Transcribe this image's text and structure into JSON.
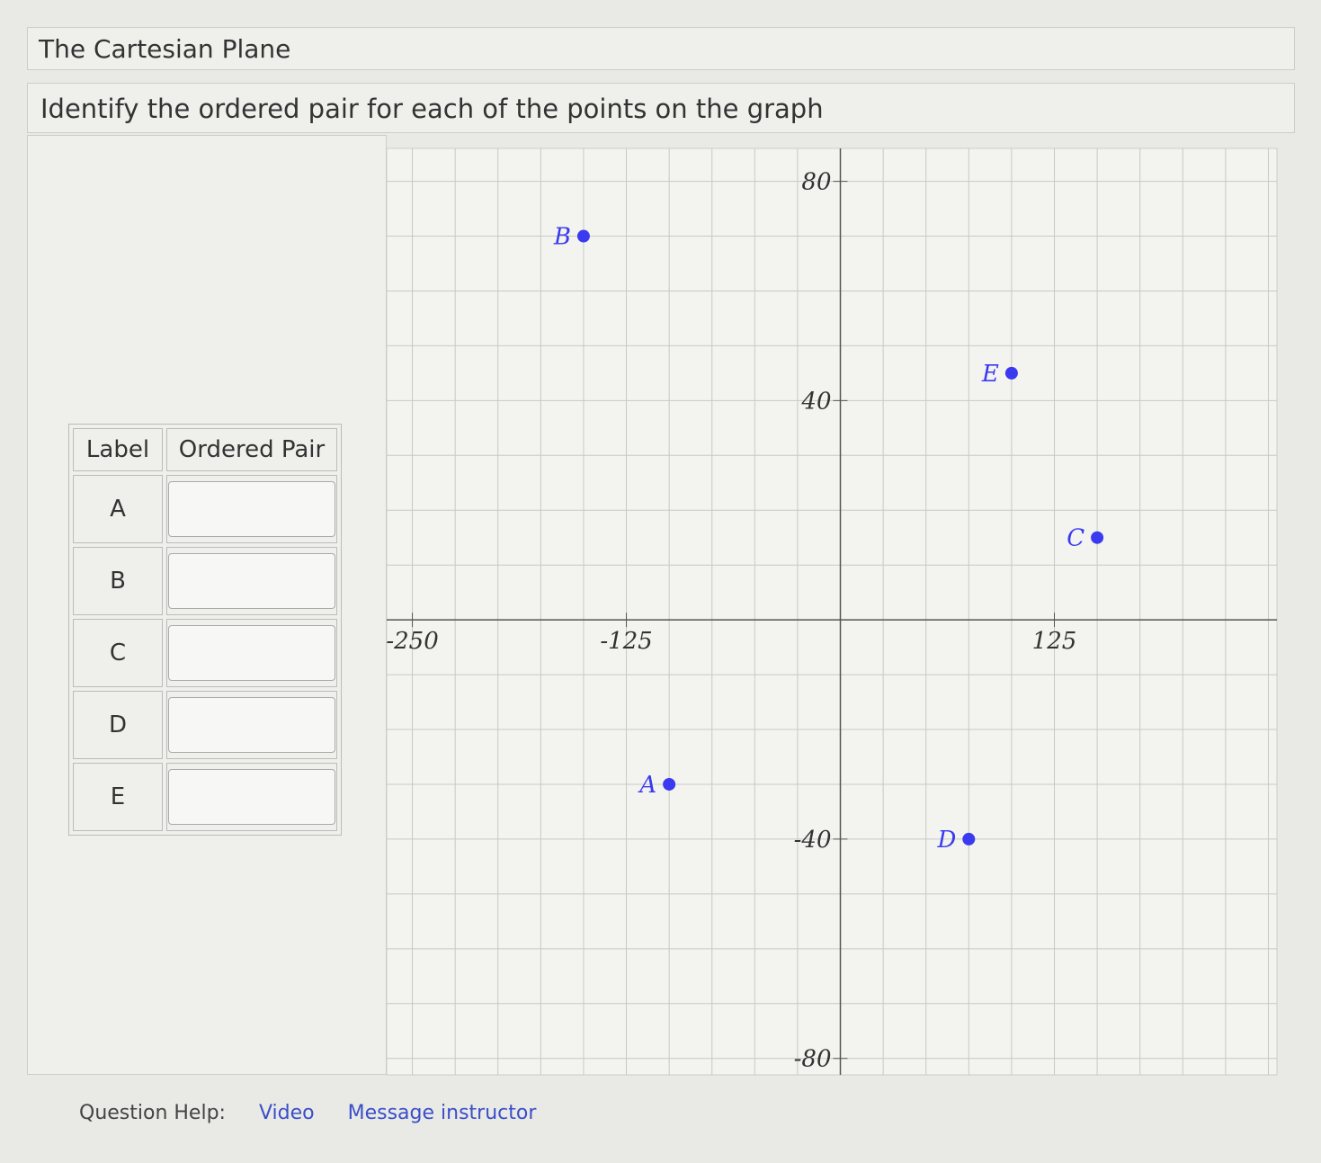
{
  "header": {
    "title": "The Cartesian Plane",
    "instruction": "Identify the ordered pair for each of the points on the graph"
  },
  "table": {
    "headers": [
      "Label",
      "Ordered Pair"
    ],
    "rows": [
      "A",
      "B",
      "C",
      "D",
      "E"
    ]
  },
  "chart_data": {
    "type": "scatter",
    "labels": [
      "A",
      "B",
      "C",
      "D",
      "E"
    ],
    "x": [
      -100,
      -150,
      150,
      75,
      100
    ],
    "values": [
      -30,
      70,
      15,
      -40,
      45
    ],
    "color": "#3a3af0",
    "xlim": [
      -265,
      255
    ],
    "ylim": [
      -83,
      86
    ],
    "xticks": [
      -250,
      -125,
      125
    ],
    "yticks": [
      80,
      40,
      -40,
      -80
    ],
    "grid": true,
    "x_minor_ticks": [
      -250,
      -225,
      -200,
      -175,
      -150,
      -125,
      -100,
      -75,
      -50,
      -25,
      0,
      25,
      50,
      75,
      100,
      125,
      150,
      175,
      200,
      225,
      250
    ],
    "y_minor_ticks": [
      -80,
      -70,
      -60,
      -50,
      -40,
      -30,
      -20,
      -10,
      0,
      10,
      20,
      30,
      40,
      50,
      60,
      70,
      80
    ]
  },
  "help": {
    "label": "Question Help:",
    "links": [
      "Video",
      "Message instructor"
    ]
  }
}
